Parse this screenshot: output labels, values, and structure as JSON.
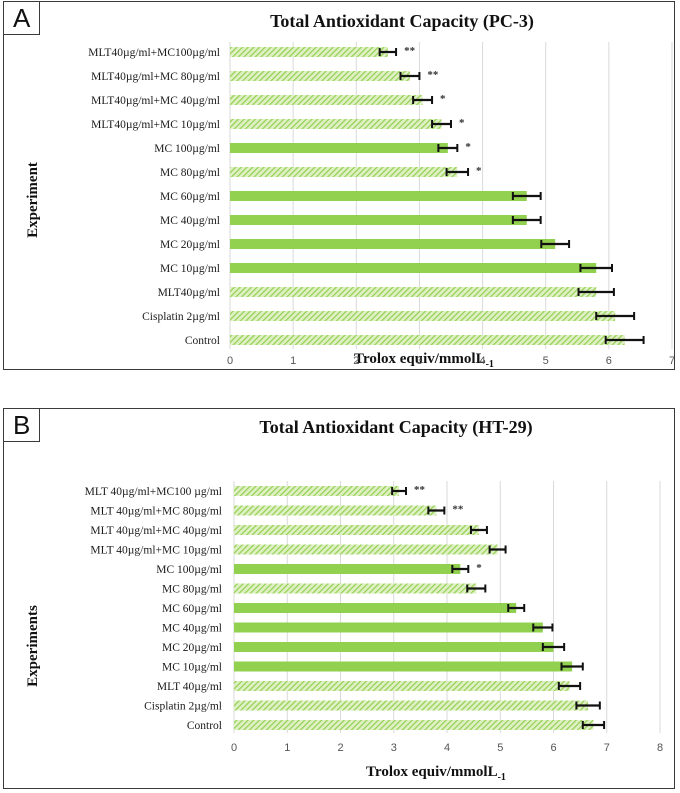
{
  "colors": {
    "bar_fill": "#92d050",
    "bar_light": "#c6e79b",
    "error_bar": "#111111",
    "grid": "#d9d9d9"
  },
  "chart_data": [
    {
      "panel_label": "A",
      "type": "bar",
      "orientation": "horizontal",
      "title": "Total Antioxidant Capacity (PC-3)",
      "xlabel_main": "Trolox equiv/mmolL",
      "xlabel_sub": "-1",
      "ylabel": "Experiment",
      "xlim": [
        0,
        7
      ],
      "xticks": [
        "0",
        "1",
        "2",
        "3",
        "4",
        "5",
        "6",
        "7"
      ],
      "grid": true,
      "categories": [
        "MLT40µg/ml+MC100µg/ml",
        "MLT40µg/ml+MC 80µg/ml",
        "MLT40µg/ml+MC 40µg/ml",
        "MLT40µg/ml+MC 10µg/ml",
        "MC 100µg/ml",
        "MC 80µg/ml",
        "MC 60µg/ml",
        "MC 40µg/ml",
        "MC 20µg/ml",
        "MC 10µg/ml",
        "MLT40µg/ml",
        "Cisplatin 2µg/ml",
        "Control"
      ],
      "values": [
        2.5,
        2.85,
        3.05,
        3.35,
        3.45,
        3.6,
        4.7,
        4.7,
        5.15,
        5.8,
        5.8,
        6.1,
        6.25
      ],
      "errors": [
        0.13,
        0.15,
        0.15,
        0.15,
        0.15,
        0.17,
        0.22,
        0.22,
        0.22,
        0.25,
        0.28,
        0.3,
        0.3
      ],
      "solid": [
        false,
        false,
        false,
        false,
        true,
        false,
        true,
        true,
        true,
        true,
        false,
        false,
        false
      ],
      "significance": [
        "**",
        "**",
        "*",
        "*",
        "*",
        "*",
        "",
        "",
        "",
        "",
        "",
        "",
        ""
      ]
    },
    {
      "panel_label": "B",
      "type": "bar",
      "orientation": "horizontal",
      "title": "Total Antioxidant Capacity (HT-29)",
      "xlabel_main": "Trolox equiv/mmolL",
      "xlabel_sub": "-1",
      "ylabel": "Experiments",
      "xlim": [
        0,
        8
      ],
      "xticks": [
        "0",
        "1",
        "2",
        "3",
        "4",
        "5",
        "6",
        "7",
        "8"
      ],
      "grid": true,
      "categories": [
        "MLT 40µg/ml+MC100 µg/ml",
        "MLT 40µg/ml+MC 80µg/ml",
        "MLT 40µg/ml+MC 40µg/ml",
        "MLT 40µg/ml+MC 10µg/ml",
        "MC 100µg/ml",
        "MC 80µg/ml",
        "MC 60µg/ml",
        "MC 40µg/ml",
        "MC 20µg/ml",
        "MC 10µg/ml",
        "MLT 40µg/ml",
        "Cisplatin 2µg/ml",
        "Control"
      ],
      "values": [
        3.1,
        3.8,
        4.6,
        4.95,
        4.25,
        4.55,
        5.3,
        5.8,
        6.0,
        6.35,
        6.3,
        6.65,
        6.75
      ],
      "errors": [
        0.13,
        0.15,
        0.15,
        0.15,
        0.15,
        0.17,
        0.15,
        0.18,
        0.2,
        0.2,
        0.2,
        0.22,
        0.2
      ],
      "solid": [
        false,
        false,
        false,
        false,
        true,
        false,
        true,
        true,
        true,
        true,
        false,
        false,
        false
      ],
      "significance": [
        "**",
        "**",
        "",
        "",
        "*",
        "",
        "",
        "",
        "",
        "",
        "",
        "",
        ""
      ]
    }
  ]
}
